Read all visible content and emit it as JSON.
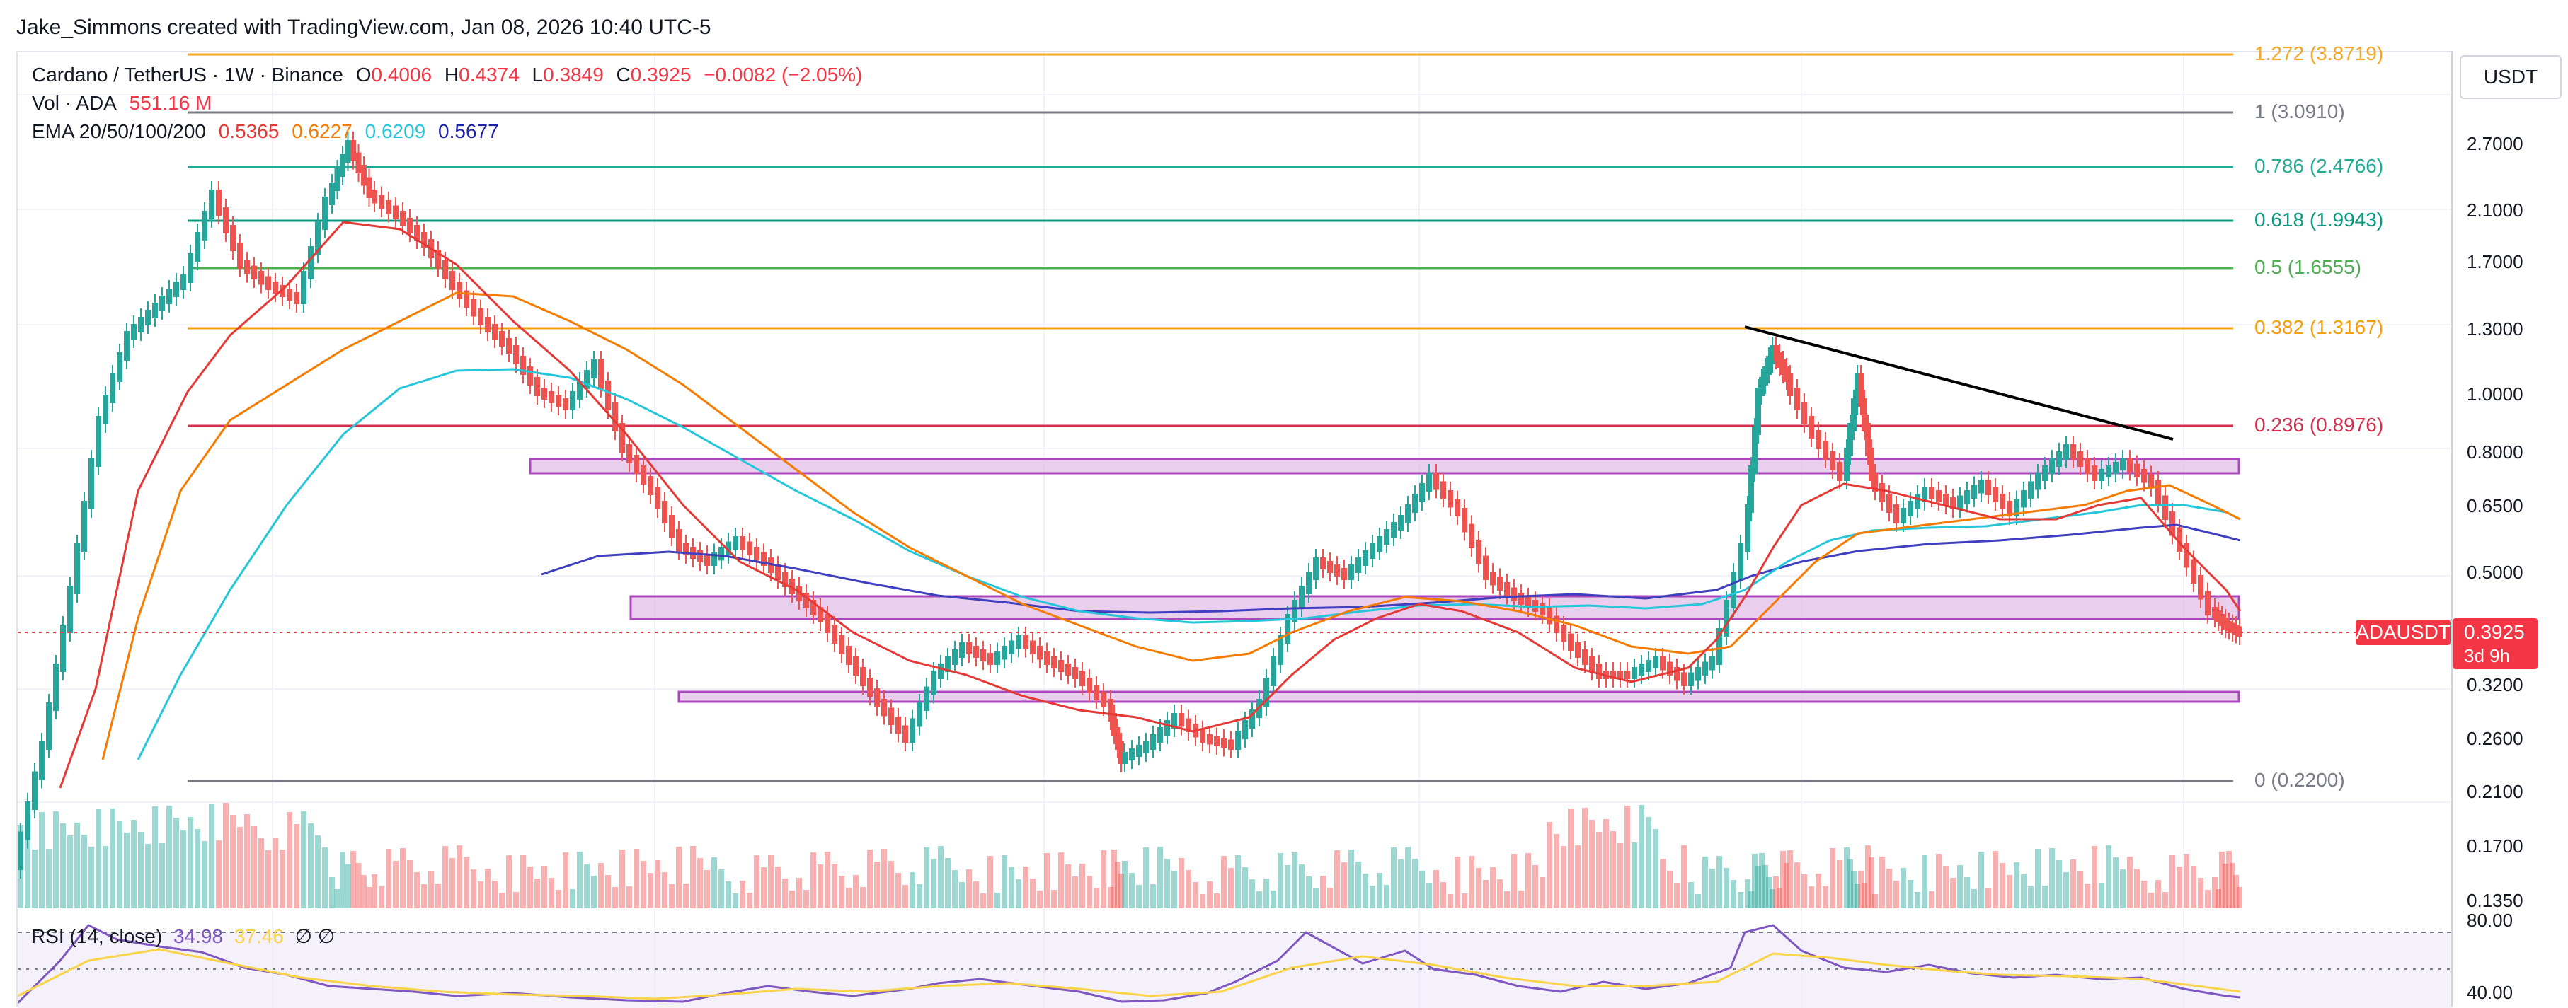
{
  "watermark": "Jake_Simmons created with TradingView.com, Jan 08, 2026 10:40 UTC-5",
  "legend": {
    "symbol": "Cardano / TetherUS · 1W · Binance",
    "o_label": "O",
    "o_value": "0.4006",
    "h_label": "H",
    "h_value": "0.4374",
    "l_label": "L",
    "l_value": "0.3849",
    "c_label": "C",
    "c_value": "0.3925",
    "change": "−0.0082 (−2.05%)",
    "vol_label": "Vol · ADA",
    "vol_value": "551.16 M",
    "ema_label": "EMA 20/50/100/200",
    "ema20": "0.5365",
    "ema50": "0.6227",
    "ema100": "0.6209",
    "ema200": "0.5677"
  },
  "price_axis": {
    "unit": "USDT",
    "ticks": [
      "2.7000",
      "2.1000",
      "1.7000",
      "1.3000",
      "1.0000",
      "0.8000",
      "0.6500",
      "0.5000",
      "0.3200",
      "0.2600",
      "0.2100",
      "0.1700",
      "0.1350"
    ],
    "rsi_ticks": [
      "80.00",
      "40.00"
    ]
  },
  "current_price": {
    "ticker": "ADAUSDT",
    "value": "0.3925",
    "timer": "3d 9h"
  },
  "fib_levels": [
    {
      "label": "1.272 (3.8719)",
      "color": "#f5a623"
    },
    {
      "label": "1 (3.0910)",
      "color": "#787b86"
    },
    {
      "label": "0.786 (2.4766)",
      "color": "#22ab94"
    },
    {
      "label": "0.618 (1.9943)",
      "color": "#089981"
    },
    {
      "label": "0.5 (1.6555)",
      "color": "#4caf50"
    },
    {
      "label": "0.382 (1.3167)",
      "color": "#f59e0b"
    },
    {
      "label": "0.236 (0.8976)",
      "color": "#d32f4f"
    },
    {
      "label": "0 (0.2200)",
      "color": "#787b86"
    }
  ],
  "rsi": {
    "label": "RSI (14, close)",
    "value": "34.98",
    "ma": "37.46"
  },
  "colors": {
    "up": "#26a69a",
    "down": "#ef5350",
    "ema20": "#e53935",
    "ema50": "#f57c00",
    "ema100": "#26c6da",
    "ema200": "#3f3fbf",
    "zone": "#e1bee7",
    "zone_border": "#ab47bc",
    "trendline": "#000000",
    "rsi": "#7e57c2"
  }
}
